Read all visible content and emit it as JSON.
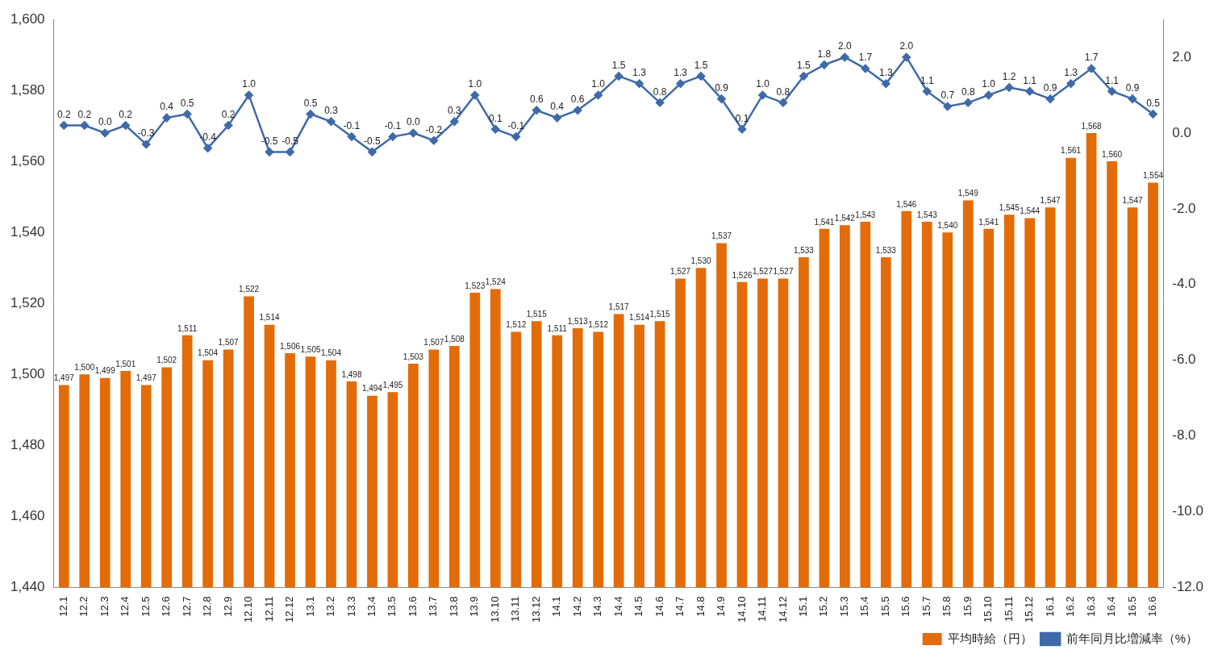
{
  "chart_data": {
    "type": "bar",
    "categories": [
      "12.1",
      "12.2",
      "12.3",
      "12.4",
      "12.5",
      "12.6",
      "12.7",
      "12.8",
      "12.9",
      "12.10",
      "12.11",
      "12.12",
      "13.1",
      "13.2",
      "13.3",
      "13.4",
      "13.5",
      "13.6",
      "13.7",
      "13.8",
      "13.9",
      "13.10",
      "13.11",
      "13.12",
      "14.1",
      "14.2",
      "14.3",
      "14.4",
      "14.5",
      "14.6",
      "14.7",
      "14.8",
      "14.9",
      "14.10",
      "14.11",
      "14.12",
      "15.1",
      "15.2",
      "15.3",
      "15.4",
      "15.5",
      "15.6",
      "15.7",
      "15.8",
      "15.9",
      "15.10",
      "15.11",
      "15.12",
      "16.1",
      "16.2",
      "16.3",
      "16.4",
      "16.5",
      "16.6"
    ],
    "series": [
      {
        "name": "平均時給（円）",
        "type": "bar",
        "color": "#e36c09",
        "values": [
          1497,
          1500,
          1499,
          1501,
          1497,
          1502,
          1511,
          1504,
          1507,
          1522,
          1514,
          1506,
          1505,
          1504,
          1498,
          1494,
          1495,
          1503,
          1507,
          1508,
          1523,
          1524,
          1512,
          1515,
          1511,
          1513,
          1512,
          1517,
          1514,
          1515,
          1527,
          1530,
          1537,
          1526,
          1527,
          1527,
          1533,
          1541,
          1542,
          1543,
          1533,
          1546,
          1543,
          1540,
          1549,
          1541,
          1545,
          1544,
          1547,
          1561,
          1568,
          1560,
          1547,
          1554
        ],
        "value_labels": [
          "1,497",
          "1,500",
          "1,499",
          "1,501",
          "1,497",
          "1,502",
          "1,511",
          "1,504",
          "1,507",
          "1,522",
          "1,514",
          "1,506",
          "1,505",
          "1,504",
          "1,498",
          "1,494",
          "1,495",
          "1,503",
          "1,507",
          "1,508",
          "1,523",
          "1,524",
          "1,512",
          "1,515",
          "1,511",
          "1,513",
          "1,512",
          "1,517",
          "1,514",
          "1,515",
          "1,527",
          "1,530",
          "1,537",
          "1,526",
          "1,527",
          "1,527",
          "1,533",
          "1,541",
          "1,542",
          "1,543",
          "1,533",
          "1,546",
          "1,543",
          "1,540",
          "1,549",
          "1,541",
          "1,545",
          "1,544",
          "1,547",
          "1,561",
          "1,568",
          "1,560",
          "1,547",
          "1,554"
        ]
      },
      {
        "name": "前年同月比増減率（%）",
        "type": "line",
        "color": "#3f6aa8",
        "axis": "y2",
        "marker": "diamond",
        "values": [
          0.2,
          0.2,
          0.0,
          0.2,
          -0.3,
          0.4,
          0.5,
          -0.4,
          0.2,
          1.0,
          -0.5,
          -0.5,
          0.5,
          0.3,
          -0.1,
          -0.5,
          -0.1,
          0.0,
          -0.2,
          0.3,
          1.0,
          0.1,
          -0.1,
          0.6,
          0.4,
          0.6,
          1.0,
          1.5,
          1.3,
          0.8,
          1.3,
          1.5,
          0.9,
          0.1,
          1.0,
          0.8,
          1.5,
          1.8,
          2.0,
          1.7,
          1.3,
          2.0,
          1.1,
          0.7,
          0.8,
          1.0,
          1.2,
          1.1,
          0.9,
          1.3,
          1.7,
          1.1,
          0.9,
          0.5
        ],
        "value_labels": [
          "0.2",
          "0.2",
          "0.0",
          "0.2",
          "-0.3",
          "0.4",
          "0.5",
          "-0.4",
          "0.2",
          "1.0",
          "-0.5",
          "-0.5",
          "0.5",
          "0.3",
          "-0.1",
          "-0.5",
          "-0.1",
          "0.0",
          "-0.2",
          "0.3",
          "1.0",
          "0.1",
          "-0.1",
          "0.6",
          "0.4",
          "0.6",
          "1.0",
          "1.5",
          "1.3",
          "0.8",
          "1.3",
          "1.5",
          "0.9",
          "0.1",
          "1.0",
          "0.8",
          "1.5",
          "1.8",
          "2.0",
          "1.7",
          "1.3",
          "2.0",
          "1.1",
          "0.7",
          "0.8",
          "1.0",
          "1.2",
          "1.1",
          "0.9",
          "1.3",
          "1.7",
          "1.1",
          "0.9",
          "0.5"
        ]
      }
    ],
    "ylim": [
      1440,
      1600
    ],
    "yticks": [
      {
        "value": 1440,
        "label": "1,440"
      },
      {
        "value": 1460,
        "label": "1,460"
      },
      {
        "value": 1480,
        "label": "1,480"
      },
      {
        "value": 1500,
        "label": "1,500"
      },
      {
        "value": 1520,
        "label": "1,520"
      },
      {
        "value": 1540,
        "label": "1,540"
      },
      {
        "value": 1560,
        "label": "1,560"
      },
      {
        "value": 1580,
        "label": "1,580"
      },
      {
        "value": 1600,
        "label": "1,600"
      }
    ],
    "y2lim": [
      -12,
      3
    ],
    "y2ticks": [
      {
        "value": -12,
        "label": "-12.0"
      },
      {
        "value": -10,
        "label": "-10.0"
      },
      {
        "value": -8,
        "label": "-8.0"
      },
      {
        "value": -6,
        "label": "-6.0"
      },
      {
        "value": -4,
        "label": "-4.0"
      },
      {
        "value": -2,
        "label": "-2.0"
      },
      {
        "value": 0,
        "label": "0.0"
      },
      {
        "value": 2,
        "label": "2.0"
      }
    ],
    "grid": false,
    "legend": "lower right",
    "data_labels": true
  }
}
